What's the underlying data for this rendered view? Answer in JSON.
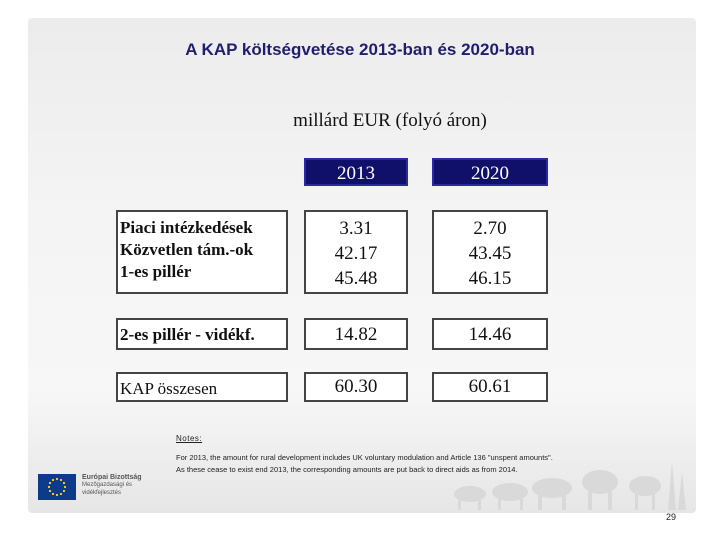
{
  "title": "A KAP költségvetése 2013-ban és 2020-ban",
  "unit": "millárd EUR (folyó áron)",
  "years": [
    "2013",
    "2020"
  ],
  "rows": {
    "group1": {
      "labels": [
        "Piaci intézkedések",
        "Közvetlen tám.-ok",
        "1-es pillér"
      ],
      "v2013": [
        "3.31",
        "42.17",
        "45.48"
      ],
      "v2020": [
        "2.70",
        "43.45",
        "46.15"
      ]
    },
    "pillar2": {
      "label": "2-es pillér - vidékf.",
      "v2013": "14.82",
      "v2020": "14.46"
    },
    "total": {
      "label": "KAP összesen",
      "v2013": "60.30",
      "v2020": "60.61"
    }
  },
  "notes": {
    "heading": "Notes:",
    "line1": "For 2013, the amount for rural development includes UK voluntary modulation and Article 136 \"unspent amounts\".",
    "line2": "As these cease to exist end 2013, the corresponding amounts are put back to direct aids as from 2014."
  },
  "logo": {
    "line1": "Európai Bizottság",
    "line2": "Mezőgazdasági és",
    "line3": "vidékfejlesztés"
  },
  "page_number": "29",
  "icons": [
    "eu-flag-icon",
    "farm-animals-icon"
  ],
  "colors": {
    "title": "#1f1f6e",
    "header_bg": "#10106a",
    "header_text": "#ffffff"
  }
}
